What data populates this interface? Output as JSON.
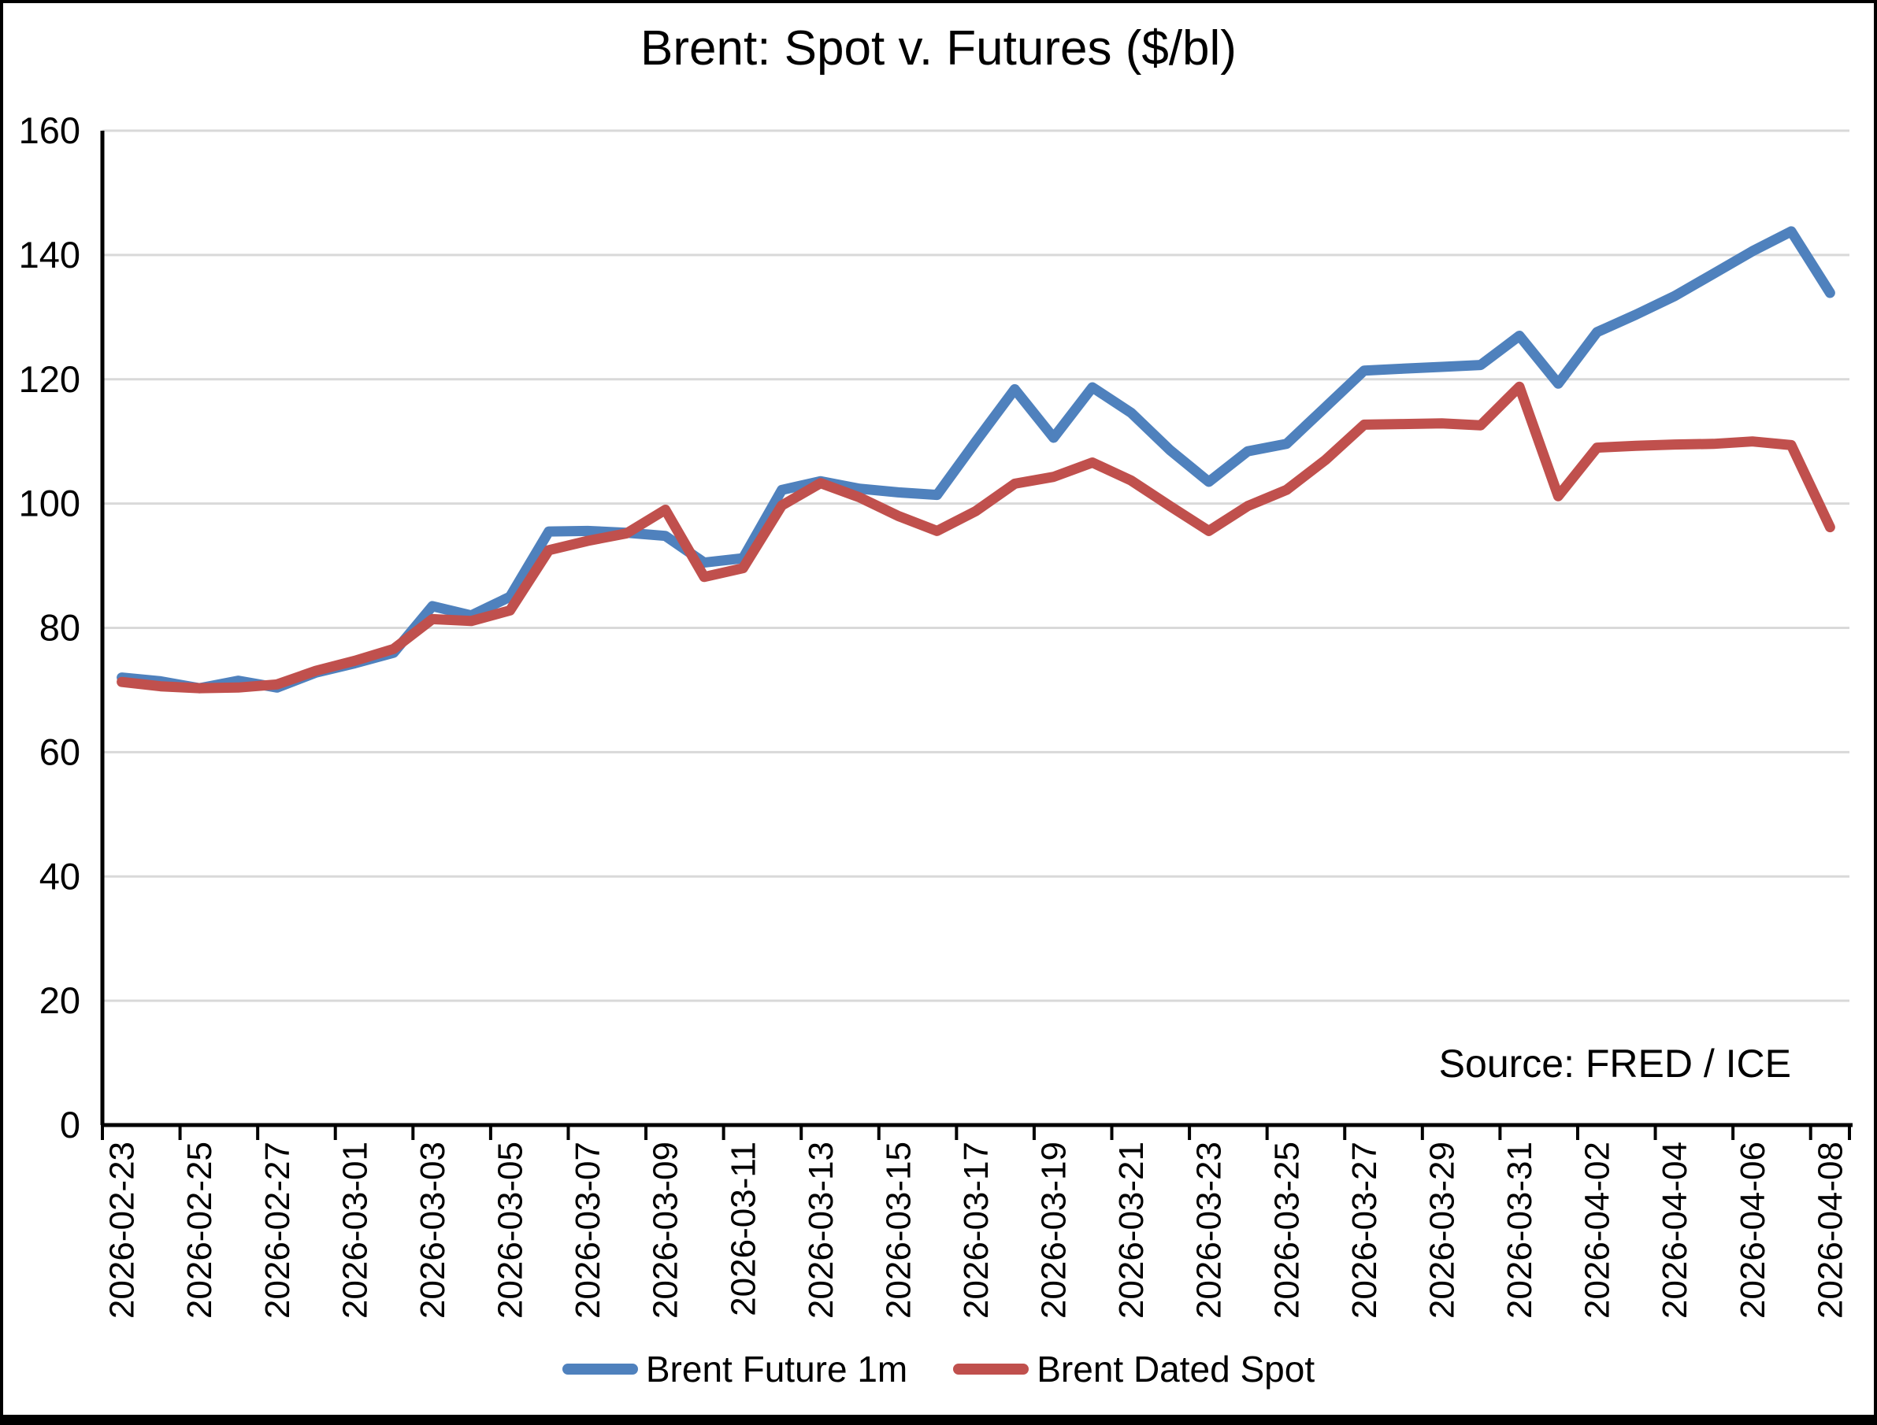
{
  "chart_data": {
    "type": "line",
    "title": "Brent: Spot v. Futures ($/bl)",
    "xlabel": "",
    "ylabel": "",
    "ylim": [
      0,
      160
    ],
    "y_ticks": [
      0,
      20,
      40,
      60,
      80,
      100,
      120,
      140,
      160
    ],
    "grid": "horizontal",
    "legend_position": "bottom",
    "source": "Source: FRED / ICE",
    "x_label_rotation": -90,
    "x_label_every": 2,
    "categories": [
      "2026-02-23",
      "2026-02-24",
      "2026-02-25",
      "2026-02-26",
      "2026-02-27",
      "2026-02-28",
      "2026-03-01",
      "2026-03-02",
      "2026-03-03",
      "2026-03-04",
      "2026-03-05",
      "2026-03-06",
      "2026-03-07",
      "2026-03-08",
      "2026-03-09",
      "2026-03-10",
      "2026-03-11",
      "2026-03-12",
      "2026-03-13",
      "2026-03-14",
      "2026-03-15",
      "2026-03-16",
      "2026-03-17",
      "2026-03-18",
      "2026-03-19",
      "2026-03-20",
      "2026-03-21",
      "2026-03-22",
      "2026-03-23",
      "2026-03-24",
      "2026-03-25",
      "2026-03-26",
      "2026-03-27",
      "2026-03-28",
      "2026-03-29",
      "2026-03-30",
      "2026-03-31",
      "2026-04-01",
      "2026-04-02",
      "2026-04-03",
      "2026-04-04",
      "2026-04-05",
      "2026-04-06",
      "2026-04-07",
      "2026-04-08"
    ],
    "series": [
      {
        "name": "Brent Future 1m",
        "color": "#4f81bd",
        "values": [
          72.0,
          71.4,
          70.3,
          71.5,
          70.4,
          72.8,
          74.3,
          76.0,
          83.5,
          82.0,
          85.0,
          95.5,
          95.6,
          95.3,
          94.8,
          90.5,
          91.2,
          102.2,
          103.6,
          102.4,
          101.8,
          101.4,
          110.0,
          118.4,
          110.6,
          118.7,
          114.6,
          108.6,
          103.5,
          108.4,
          109.6,
          115.5,
          121.4,
          121.7,
          122.0,
          122.3,
          127.0,
          119.3,
          127.6,
          130.4,
          133.4,
          137.0,
          140.6,
          143.8,
          133.9
        ]
      },
      {
        "name": "Brent Dated Spot",
        "color": "#c0504d",
        "values": [
          71.3,
          70.6,
          70.3,
          70.4,
          70.9,
          73.1,
          74.7,
          76.6,
          81.4,
          81.1,
          82.8,
          92.5,
          94.0,
          95.2,
          99.0,
          88.2,
          89.6,
          99.7,
          103.3,
          101.0,
          98.0,
          95.6,
          98.8,
          103.2,
          104.3,
          106.6,
          103.7,
          99.6,
          95.6,
          99.6,
          102.2,
          107.0,
          112.7,
          112.8,
          112.9,
          112.6,
          118.8,
          101.2,
          109.0,
          109.3,
          109.5,
          109.6,
          110.0,
          109.4,
          96.2
        ]
      }
    ],
    "style": {
      "grid_color": "#d9d9d9",
      "axis_color": "#000000",
      "line_width": 13,
      "background": "#ffffff"
    }
  }
}
